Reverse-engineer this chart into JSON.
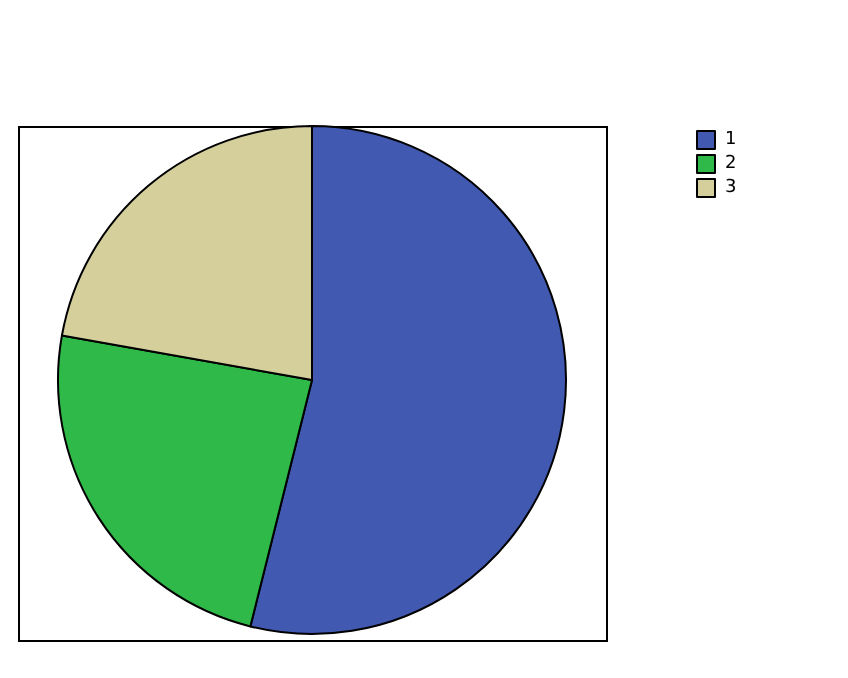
{
  "chart_data": {
    "type": "pie",
    "categories": [
      "1",
      "2",
      "3"
    ],
    "values": [
      53.9,
      23.9,
      22.2
    ],
    "colors": [
      "#4159b0",
      "#2fb948",
      "#d5cf9c"
    ],
    "legend": "top right"
  }
}
